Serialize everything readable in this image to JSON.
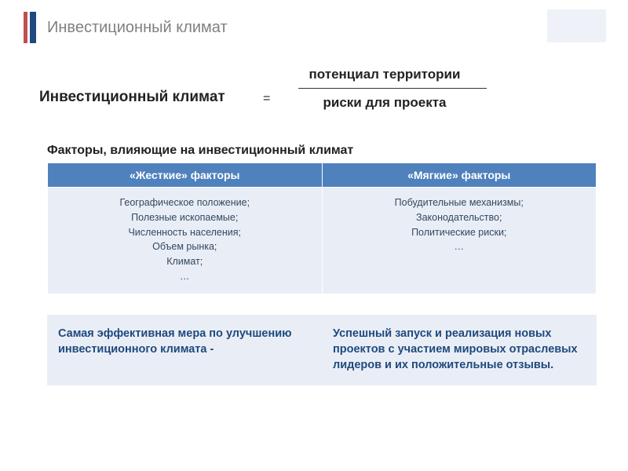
{
  "colors": {
    "accent_red": "#c0504d",
    "accent_blue": "#1f497d",
    "title_gray": "#808080",
    "table_header_bg": "#4f81bd",
    "table_header_fg": "#ffffff",
    "table_cell_bg": "#e9eef6",
    "table_cell_fg": "#33475f",
    "conclusion_bg": "#e9eef6",
    "conclusion_fg": "#1f497d",
    "page_box_bg": "#eef2f8"
  },
  "title": "Инвестиционный климат",
  "formula": {
    "label": "Инвестиционный климат",
    "equals": "=",
    "numerator": "потенциал территории",
    "denominator": "риски для проекта"
  },
  "subheading": "Факторы, влияющие на инвестиционный климат",
  "factors_table": {
    "headers": [
      "«Жесткие» факторы",
      "«Мягкие» факторы"
    ],
    "rows": [
      [
        "Географическое положение;\nПолезные ископаемые;\nЧисленность населения;\nОбъем рынка;\nКлимат;\n…",
        "Побудительные механизмы;\nЗаконодательство;\nПолитические риски;\n…"
      ]
    ]
  },
  "conclusion": {
    "left": "Самая эффективная мера по улучшению инвестиционного климата -",
    "right": "Успешный запуск и реализация новых проектов с участием мировых отраслевых лидеров и их положительные отзывы."
  }
}
